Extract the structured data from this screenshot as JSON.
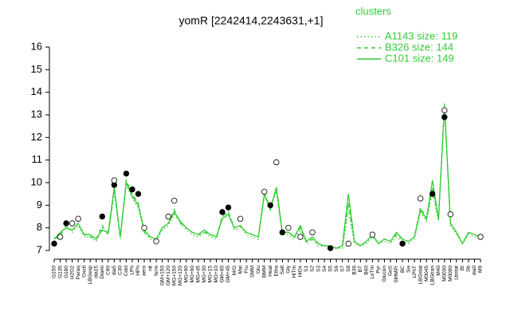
{
  "chart_data": {
    "type": "line",
    "title": "yomR [2242414,2243631,+1]",
    "categories": [
      "G150",
      "G135",
      "G180",
      "H2O2",
      "Paraq",
      "Oxctl",
      "LBGexp",
      "dia15",
      "Diami",
      "C90",
      "dia5",
      "C30",
      "Cold",
      "LPh",
      "HPh",
      "aero",
      "nit",
      "ferm",
      "GM+150",
      "GM+120",
      "MG+150",
      "MG+120",
      "MG+90",
      "MG+60",
      "MG+45",
      "MG+30",
      "MG+15",
      "MG+10",
      "GM+60",
      "GM+45",
      "M/G",
      "Mal",
      "Fru",
      "SMM",
      "Glu",
      "BMM",
      "Heat",
      "Etha",
      "Salt",
      "Gly",
      "HiTm",
      "HiOx",
      "S1",
      "S2",
      "S3",
      "S4",
      "S5",
      "S6",
      "S7",
      "S8",
      "B36",
      "BT",
      "B60",
      "LoTm",
      "Pyr",
      "Glucon",
      "GoS",
      "SMMPr",
      "BC",
      "Sw",
      "LPhT",
      "LBGstat",
      "M0045",
      "LBGtran",
      "M40",
      "M0030",
      "M0090",
      "Lbstat",
      "BI",
      "Sb",
      "dia0",
      "M9"
    ],
    "series": [
      {
        "name": "A1143 size: 119",
        "color": "#33cc33",
        "linestyle": "dotted",
        "values": [
          7.4,
          7.7,
          8.1,
          7.8,
          8.1,
          7.6,
          7.6,
          7.4,
          8.0,
          7.7,
          9.6,
          7.5,
          9.9,
          9.3,
          8.9,
          7.8,
          7.5,
          7.4,
          7.9,
          8.1,
          8.6,
          8.2,
          7.9,
          7.7,
          7.6,
          7.8,
          7.6,
          7.5,
          8.5,
          8.7,
          7.9,
          8.0,
          7.7,
          7.6,
          7.5,
          9.4,
          8.9,
          9.6,
          7.7,
          7.7,
          7.5,
          7.9,
          7.3,
          7.5,
          7.2,
          7.2,
          7.1,
          7.1,
          7.1,
          8.8,
          7.3,
          7.2,
          7.3,
          7.6,
          7.3,
          7.4,
          7.3,
          7.6,
          7.4,
          7.3,
          7.5,
          8.7,
          8.3,
          9.6,
          8.3,
          13.3,
          8.1,
          7.7,
          7.3,
          7.7,
          7.6,
          7.5
        ]
      },
      {
        "name": "B326 size: 144",
        "color": "#33cc33",
        "linestyle": "dashed",
        "values": [
          7.5,
          7.7,
          8.0,
          7.9,
          8.2,
          7.7,
          7.6,
          7.5,
          8.1,
          7.7,
          9.7,
          7.6,
          10.1,
          9.5,
          9.1,
          7.8,
          7.6,
          7.5,
          8.0,
          8.2,
          8.8,
          8.2,
          8.0,
          7.8,
          7.7,
          7.8,
          7.7,
          7.6,
          8.5,
          8.7,
          8.0,
          8.1,
          7.8,
          7.7,
          7.6,
          9.5,
          8.9,
          9.7,
          7.8,
          7.8,
          7.6,
          8.0,
          7.4,
          7.5,
          7.3,
          7.2,
          7.2,
          7.1,
          7.2,
          9.1,
          7.4,
          7.2,
          7.4,
          7.7,
          7.3,
          7.5,
          7.4,
          7.7,
          7.5,
          7.4,
          7.6,
          8.9,
          8.4,
          9.8,
          8.4,
          13.5,
          8.2,
          7.8,
          7.3,
          7.8,
          7.7,
          7.6
        ]
      },
      {
        "name": "C101 size: 149",
        "color": "#33cc33",
        "linestyle": "solid",
        "values": [
          7.5,
          7.8,
          8.0,
          7.9,
          8.2,
          7.7,
          7.7,
          7.5,
          7.9,
          7.8,
          9.8,
          7.6,
          10.0,
          9.4,
          9.0,
          7.9,
          7.6,
          7.5,
          8.0,
          8.2,
          8.7,
          8.3,
          8.0,
          7.8,
          7.7,
          7.9,
          7.7,
          7.6,
          8.4,
          8.6,
          8.0,
          8.1,
          7.8,
          7.7,
          7.6,
          9.5,
          8.8,
          9.8,
          7.8,
          7.8,
          7.6,
          8.1,
          7.4,
          7.6,
          7.3,
          7.2,
          7.2,
          7.1,
          7.2,
          9.5,
          7.4,
          7.2,
          7.4,
          7.7,
          7.3,
          7.5,
          7.4,
          7.8,
          7.5,
          7.4,
          7.6,
          8.8,
          8.4,
          10.1,
          8.4,
          13.4,
          8.2,
          7.8,
          7.3,
          7.8,
          7.7,
          7.6
        ]
      }
    ],
    "points": [
      {
        "style": "filled",
        "values": [
          7.3,
          null,
          8.2,
          null,
          null,
          null,
          null,
          null,
          8.5,
          null,
          9.9,
          null,
          10.4,
          9.7,
          9.5,
          null,
          null,
          null,
          null,
          null,
          null,
          null,
          null,
          null,
          null,
          null,
          null,
          null,
          8.7,
          8.9,
          null,
          null,
          null,
          null,
          null,
          null,
          9.0,
          null,
          7.8,
          null,
          null,
          null,
          null,
          null,
          null,
          null,
          7.1,
          null,
          null,
          null,
          null,
          null,
          null,
          null,
          null,
          null,
          null,
          null,
          7.3,
          null,
          null,
          null,
          null,
          9.5,
          null,
          12.9,
          null,
          null,
          null,
          null,
          null,
          null
        ]
      },
      {
        "style": "open",
        "values": [
          null,
          7.6,
          null,
          8.2,
          8.4,
          null,
          null,
          null,
          null,
          null,
          10.1,
          null,
          null,
          null,
          null,
          8.0,
          null,
          7.4,
          null,
          8.5,
          9.2,
          null,
          null,
          null,
          null,
          null,
          null,
          null,
          null,
          null,
          null,
          8.4,
          null,
          null,
          null,
          9.6,
          null,
          10.9,
          null,
          8.0,
          null,
          7.6,
          null,
          7.8,
          null,
          null,
          null,
          null,
          null,
          7.3,
          null,
          null,
          null,
          7.7,
          null,
          null,
          null,
          null,
          null,
          null,
          null,
          9.3,
          null,
          null,
          null,
          13.2,
          8.6,
          null,
          null,
          null,
          null,
          7.6
        ]
      }
    ],
    "legend_title": "clusters",
    "ylim": [
      7,
      16
    ],
    "yticks": [
      7,
      8,
      9,
      10,
      11,
      12,
      13,
      14,
      15,
      16
    ]
  }
}
